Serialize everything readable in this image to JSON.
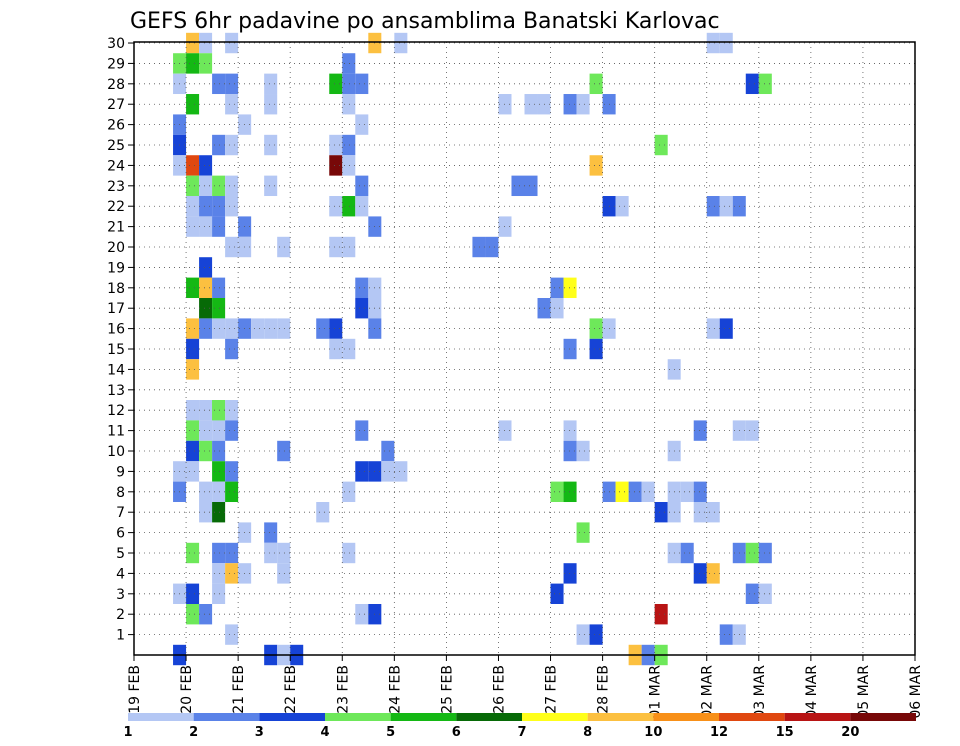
{
  "chart_data": {
    "type": "heatmap",
    "title": "GEFS 6hr padavine po ansamblima Banatski Karlovac",
    "xlabel": "",
    "ylabel": "",
    "x_tick_labels": [
      "19 FEB",
      "20 FEB",
      "21 FEB",
      "22 FEB",
      "23 FEB",
      "24 FEB",
      "25 FEB",
      "26 FEB",
      "27 FEB",
      "28 FEB",
      "01 MAR",
      "02 MAR",
      "03 MAR",
      "04 MAR",
      "05 MAR",
      "06 MAR"
    ],
    "y_tick_labels": [
      "1",
      "2",
      "3",
      "4",
      "5",
      "6",
      "7",
      "8",
      "9",
      "10",
      "11",
      "12",
      "13",
      "14",
      "15",
      "16",
      "17",
      "18",
      "19",
      "20",
      "21",
      "22",
      "23",
      "24",
      "25",
      "26",
      "27",
      "28",
      "29",
      "30"
    ],
    "x_range_steps": [
      0,
      60
    ],
    "steps_per_day": 4,
    "y_range": [
      0,
      30
    ],
    "legend": {
      "placement": "bottom",
      "labels": [
        "1",
        "2",
        "3",
        "4",
        "5",
        "6",
        "7",
        "8",
        "10",
        "12",
        "15",
        "20"
      ],
      "bins": [
        {
          "min": 1,
          "max": 2,
          "color": "#b4c7f4"
        },
        {
          "min": 2,
          "max": 3,
          "color": "#5a82e8"
        },
        {
          "min": 3,
          "max": 4,
          "color": "#1643d6"
        },
        {
          "min": 4,
          "max": 5,
          "color": "#6ee85a"
        },
        {
          "min": 5,
          "max": 6,
          "color": "#14b814"
        },
        {
          "min": 6,
          "max": 7,
          "color": "#076a07"
        },
        {
          "min": 7,
          "max": 8,
          "color": "#ffff1a"
        },
        {
          "min": 8,
          "max": 10,
          "color": "#fcc040"
        },
        {
          "min": 10,
          "max": 12,
          "color": "#f89018"
        },
        {
          "min": 12,
          "max": 15,
          "color": "#e04810"
        },
        {
          "min": 15,
          "max": 20,
          "color": "#b81414"
        },
        {
          "min": 20,
          "max": 30,
          "color": "#780808"
        }
      ]
    },
    "note": "cells: [time step (6h, 0 = 19 FEB 00Z), ensemble member, precipitation mm]",
    "cells": [
      [
        4,
        30,
        8
      ],
      [
        5,
        30,
        1.5
      ],
      [
        7,
        30,
        1.5
      ],
      [
        18,
        30,
        8
      ],
      [
        20,
        30,
        1.5
      ],
      [
        44,
        30,
        1.5
      ],
      [
        45,
        30,
        1.5
      ],
      [
        3,
        29,
        4.5
      ],
      [
        4,
        29,
        5.5
      ],
      [
        5,
        29,
        4.5
      ],
      [
        16,
        29,
        2.5
      ],
      [
        3,
        28,
        1.5
      ],
      [
        6,
        28,
        2.5
      ],
      [
        7,
        28,
        2.5
      ],
      [
        10,
        28,
        1.5
      ],
      [
        15,
        28,
        5.5
      ],
      [
        16,
        28,
        2.5
      ],
      [
        17,
        28,
        2.5
      ],
      [
        35,
        28,
        4.5
      ],
      [
        47,
        28,
        3.5
      ],
      [
        48,
        28,
        4.5
      ],
      [
        4,
        27,
        5.5
      ],
      [
        7,
        27,
        1.5
      ],
      [
        10,
        27,
        1.5
      ],
      [
        16,
        27,
        1.5
      ],
      [
        28,
        27,
        1.5
      ],
      [
        30,
        27,
        1.5
      ],
      [
        31,
        27,
        1.5
      ],
      [
        33,
        27,
        2.5
      ],
      [
        34,
        27,
        1.5
      ],
      [
        36,
        27,
        2.5
      ],
      [
        3,
        26,
        2.5
      ],
      [
        8,
        26,
        1.5
      ],
      [
        17,
        26,
        1.5
      ],
      [
        3,
        25,
        3.5
      ],
      [
        6,
        25,
        2.5
      ],
      [
        7,
        25,
        1.5
      ],
      [
        10,
        25,
        1.5
      ],
      [
        15,
        25,
        1.5
      ],
      [
        16,
        25,
        2.5
      ],
      [
        40,
        25,
        4.5
      ],
      [
        3,
        24,
        1.5
      ],
      [
        4,
        24,
        12.5
      ],
      [
        5,
        24,
        3.5
      ],
      [
        15,
        24,
        25
      ],
      [
        16,
        24,
        1.5
      ],
      [
        35,
        24,
        8
      ],
      [
        4,
        23,
        4.5
      ],
      [
        5,
        23,
        1.5
      ],
      [
        6,
        23,
        4.5
      ],
      [
        7,
        23,
        1.5
      ],
      [
        10,
        23,
        1.5
      ],
      [
        17,
        23,
        2.5
      ],
      [
        29,
        23,
        2.5
      ],
      [
        30,
        23,
        2.5
      ],
      [
        4,
        22,
        1.5
      ],
      [
        5,
        22,
        2.5
      ],
      [
        6,
        22,
        2.5
      ],
      [
        7,
        22,
        1.5
      ],
      [
        15,
        22,
        1.5
      ],
      [
        16,
        22,
        5.5
      ],
      [
        17,
        22,
        1.5
      ],
      [
        36,
        22,
        3.5
      ],
      [
        37,
        22,
        1.5
      ],
      [
        44,
        22,
        2.5
      ],
      [
        45,
        22,
        1.5
      ],
      [
        46,
        22,
        2.5
      ],
      [
        4,
        21,
        1.5
      ],
      [
        5,
        21,
        1.5
      ],
      [
        6,
        21,
        2.5
      ],
      [
        8,
        21,
        2.5
      ],
      [
        18,
        21,
        2.5
      ],
      [
        28,
        21,
        1.5
      ],
      [
        7,
        20,
        1.5
      ],
      [
        8,
        20,
        1.5
      ],
      [
        11,
        20,
        1.5
      ],
      [
        15,
        20,
        1.5
      ],
      [
        16,
        20,
        1.5
      ],
      [
        26,
        20,
        2.5
      ],
      [
        27,
        20,
        2.5
      ],
      [
        5,
        19,
        3.5
      ],
      [
        4,
        18,
        5.5
      ],
      [
        5,
        18,
        8
      ],
      [
        6,
        18,
        2.5
      ],
      [
        17,
        18,
        2.5
      ],
      [
        18,
        18,
        1.5
      ],
      [
        32,
        18,
        2.5
      ],
      [
        33,
        18,
        7.5
      ],
      [
        5,
        17,
        6.5
      ],
      [
        6,
        17,
        5.5
      ],
      [
        17,
        17,
        3.5
      ],
      [
        18,
        17,
        1.5
      ],
      [
        31,
        17,
        2.5
      ],
      [
        32,
        17,
        1.5
      ],
      [
        4,
        16,
        8
      ],
      [
        5,
        16,
        2.5
      ],
      [
        6,
        16,
        1.5
      ],
      [
        7,
        16,
        1.5
      ],
      [
        8,
        16,
        2.5
      ],
      [
        9,
        16,
        1.5
      ],
      [
        10,
        16,
        1.5
      ],
      [
        11,
        16,
        1.5
      ],
      [
        14,
        16,
        2.5
      ],
      [
        15,
        16,
        3.5
      ],
      [
        18,
        16,
        2.5
      ],
      [
        35,
        16,
        4.5
      ],
      [
        36,
        16,
        1.5
      ],
      [
        44,
        16,
        1.5
      ],
      [
        45,
        16,
        3.5
      ],
      [
        4,
        15,
        3.5
      ],
      [
        7,
        15,
        2.5
      ],
      [
        15,
        15,
        1.5
      ],
      [
        16,
        15,
        1.5
      ],
      [
        33,
        15,
        2.5
      ],
      [
        35,
        15,
        3.5
      ],
      [
        4,
        14,
        8
      ],
      [
        41,
        14,
        1.5
      ],
      [
        5,
        12,
        1.5
      ],
      [
        6,
        12,
        4.5
      ],
      [
        6,
        12,
        4.5
      ],
      [
        7,
        12,
        1.5
      ],
      [
        4,
        12,
        1.5
      ],
      [
        4,
        11,
        4.5
      ],
      [
        5,
        11,
        1.5
      ],
      [
        6,
        11,
        1.5
      ],
      [
        7,
        11,
        2.5
      ],
      [
        17,
        11,
        2.5
      ],
      [
        28,
        11,
        1.5
      ],
      [
        33,
        11,
        1.5
      ],
      [
        43,
        11,
        2.5
      ],
      [
        46,
        11,
        1.5
      ],
      [
        47,
        11,
        1.5
      ],
      [
        4,
        10,
        3.5
      ],
      [
        5,
        10,
        4.5
      ],
      [
        6,
        10,
        2.5
      ],
      [
        11,
        10,
        2.5
      ],
      [
        19,
        10,
        2.5
      ],
      [
        33,
        10,
        2.5
      ],
      [
        34,
        10,
        1.5
      ],
      [
        41,
        10,
        1.5
      ],
      [
        3,
        9,
        1.5
      ],
      [
        4,
        9,
        1.5
      ],
      [
        6,
        9,
        5.5
      ],
      [
        7,
        9,
        2.5
      ],
      [
        17,
        9,
        3.5
      ],
      [
        18,
        9,
        3.5
      ],
      [
        19,
        9,
        1.5
      ],
      [
        20,
        9,
        1.5
      ],
      [
        3,
        8,
        2.5
      ],
      [
        5,
        8,
        1.5
      ],
      [
        6,
        8,
        1.5
      ],
      [
        7,
        8,
        5.5
      ],
      [
        16,
        8,
        1.5
      ],
      [
        32,
        8,
        4.5
      ],
      [
        33,
        8,
        5.5
      ],
      [
        36,
        8,
        2.5
      ],
      [
        37,
        8,
        7.5
      ],
      [
        38,
        8,
        2.5
      ],
      [
        39,
        8,
        1.5
      ],
      [
        41,
        8,
        1.5
      ],
      [
        42,
        8,
        1.5
      ],
      [
        43,
        8,
        2.5
      ],
      [
        5,
        7,
        1.5
      ],
      [
        6,
        7,
        6.5
      ],
      [
        14,
        7,
        1.5
      ],
      [
        40,
        7,
        3.5
      ],
      [
        41,
        7,
        1.5
      ],
      [
        43,
        7,
        1.5
      ],
      [
        44,
        7,
        1.5
      ],
      [
        8,
        6,
        1.5
      ],
      [
        10,
        6,
        2.5
      ],
      [
        34,
        6,
        4.5
      ],
      [
        4,
        5,
        4.5
      ],
      [
        6,
        5,
        2.5
      ],
      [
        7,
        5,
        2.5
      ],
      [
        10,
        5,
        1.5
      ],
      [
        11,
        5,
        1.5
      ],
      [
        16,
        5,
        1.5
      ],
      [
        41,
        5,
        1.5
      ],
      [
        42,
        5,
        2.5
      ],
      [
        46,
        5,
        2.5
      ],
      [
        47,
        5,
        4.5
      ],
      [
        48,
        5,
        2.5
      ],
      [
        6,
        4,
        1.5
      ],
      [
        7,
        4,
        8
      ],
      [
        8,
        4,
        1.5
      ],
      [
        11,
        4,
        1.5
      ],
      [
        33,
        4,
        3.5
      ],
      [
        43,
        4,
        3.5
      ],
      [
        44,
        4,
        8
      ],
      [
        3,
        3,
        1.5
      ],
      [
        4,
        3,
        3.5
      ],
      [
        6,
        3,
        1.5
      ],
      [
        32,
        3,
        3.5
      ],
      [
        47,
        3,
        2.5
      ],
      [
        48,
        3,
        1.5
      ],
      [
        4,
        2,
        4.5
      ],
      [
        5,
        2,
        2.5
      ],
      [
        17,
        2,
        1.5
      ],
      [
        18,
        2,
        3.5
      ],
      [
        40,
        2,
        17
      ],
      [
        7,
        1,
        1.5
      ],
      [
        34,
        1,
        1.5
      ],
      [
        35,
        1,
        3.5
      ],
      [
        45,
        1,
        2.5
      ],
      [
        46,
        1,
        1.5
      ],
      [
        3,
        0,
        3.5
      ],
      [
        10,
        0,
        3.5
      ],
      [
        11,
        0,
        1.5
      ],
      [
        12,
        0,
        3.5
      ],
      [
        38,
        0,
        8
      ],
      [
        39,
        0,
        2.5
      ],
      [
        40,
        0,
        4.5
      ]
    ]
  }
}
